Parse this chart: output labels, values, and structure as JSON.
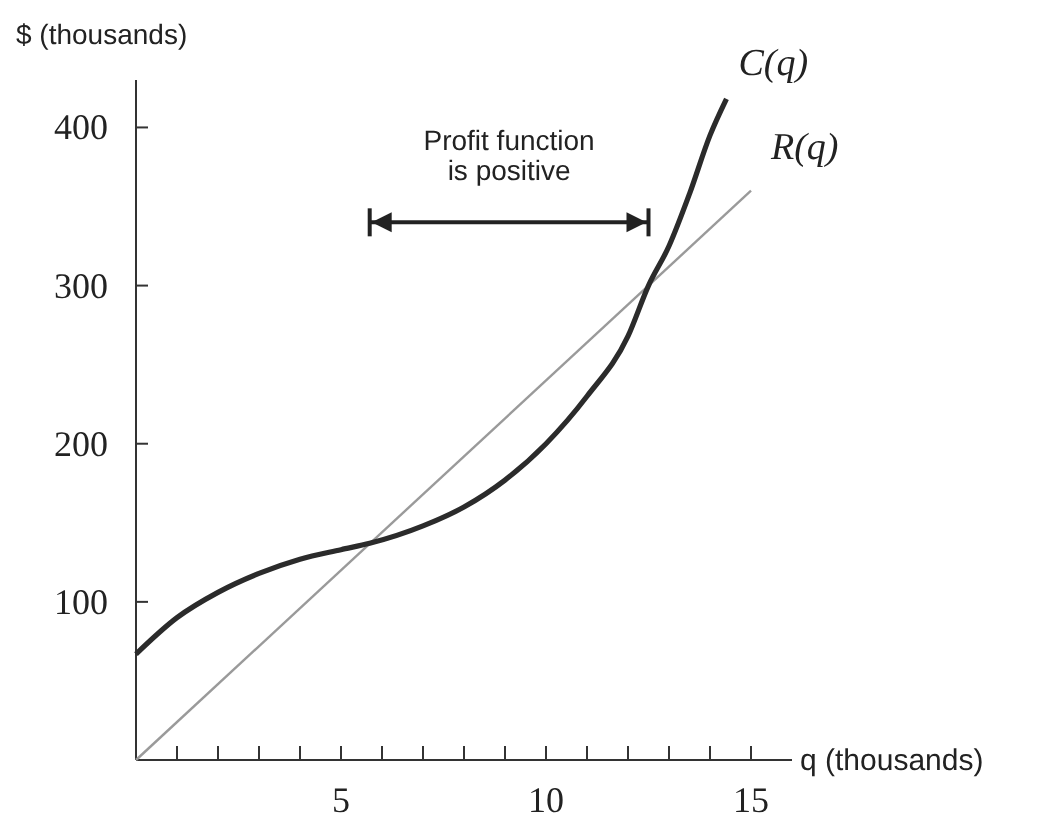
{
  "chart_data": {
    "type": "line",
    "ylabel": "$ (thousands)",
    "xlabel": "q (thousands)",
    "annotations": [
      "Profit function is positive"
    ],
    "xlim": [
      0,
      16
    ],
    "ylim": [
      0,
      430
    ],
    "xticks": [
      {
        "value": 1,
        "label": null
      },
      {
        "value": 2,
        "label": null
      },
      {
        "value": 3,
        "label": null
      },
      {
        "value": 4,
        "label": null
      },
      5,
      {
        "value": 6,
        "label": null
      },
      {
        "value": 7,
        "label": null
      },
      {
        "value": 8,
        "label": null
      },
      {
        "value": 9,
        "label": null
      },
      10,
      {
        "value": 11,
        "label": null
      },
      {
        "value": 12,
        "label": null
      },
      {
        "value": 13,
        "label": null
      },
      {
        "value": 14,
        "label": null
      },
      15
    ],
    "yticks": [
      100,
      200,
      300,
      400
    ],
    "grid": false,
    "line_style": "solid",
    "series": [
      {
        "name": "C(q)",
        "color": "#2b2b2b",
        "x": [
          0,
          1,
          2,
          3,
          4,
          5,
          5.7,
          7,
          8,
          9,
          10,
          11,
          12,
          12.5,
          13,
          13.5,
          14,
          14.4
        ],
        "values": [
          67,
          90,
          106,
          118,
          127,
          133,
          137,
          148,
          160,
          177,
          200,
          230,
          268,
          300,
          325,
          358,
          395,
          418
        ]
      },
      {
        "name": "R(q)",
        "color": "#9a9a9a",
        "x": [
          0,
          15
        ],
        "values": [
          0,
          360
        ]
      }
    ]
  }
}
